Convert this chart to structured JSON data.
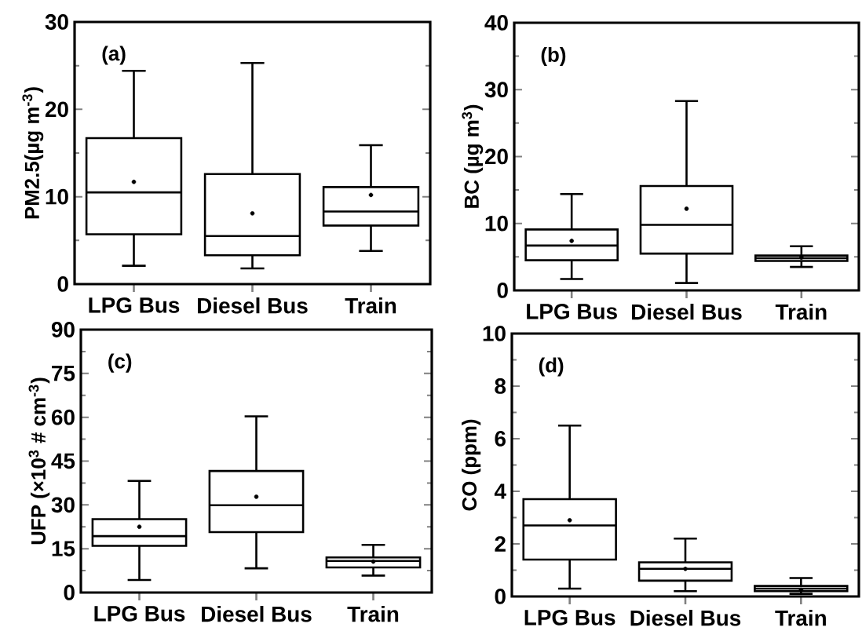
{
  "chart_data": [
    {
      "type": "box",
      "categories": [
        "LPG Bus",
        "Diesel Bus",
        "Train"
      ],
      "ylabel": "PM2.5(µg m$^{-3}$)",
      "ylim": [
        0,
        30
      ],
      "yticks": [
        0,
        10,
        20,
        30
      ],
      "annotations": [
        "(a)"
      ],
      "boxes": [
        {
          "low": 2.1,
          "q1": 5.7,
          "median": 10.5,
          "q3": 16.7,
          "high": 24.4,
          "mean": 11.7
        },
        {
          "low": 1.8,
          "q1": 3.3,
          "median": 5.5,
          "q3": 12.6,
          "high": 25.3,
          "mean": 8.1
        },
        {
          "low": 3.8,
          "q1": 6.7,
          "median": 8.3,
          "q3": 11.1,
          "high": 15.9,
          "mean": 10.2
        }
      ]
    },
    {
      "type": "box",
      "categories": [
        "LPG Bus",
        "Diesel Bus",
        "Train"
      ],
      "ylabel": "BC (µg m$^{3}$)",
      "ylim": [
        0,
        40
      ],
      "yticks": [
        0,
        10,
        20,
        30,
        40
      ],
      "annotations": [
        "(b)"
      ],
      "boxes": [
        {
          "low": 1.7,
          "q1": 4.5,
          "median": 6.7,
          "q3": 9.1,
          "high": 14.4,
          "mean": 7.4
        },
        {
          "low": 1.1,
          "q1": 5.5,
          "median": 9.8,
          "q3": 15.6,
          "high": 28.3,
          "mean": 12.2
        },
        {
          "low": 3.5,
          "q1": 4.4,
          "median": 4.8,
          "q3": 5.2,
          "high": 6.6,
          "mean": 4.9
        }
      ]
    },
    {
      "type": "box",
      "categories": [
        "LPG Bus",
        "Diesel Bus",
        "Train"
      ],
      "ylabel": "UFP (×10$^{3}$ # cm$^{-3}$)",
      "ylim": [
        0,
        90
      ],
      "yticks": [
        0,
        15,
        30,
        45,
        60,
        75,
        90
      ],
      "annotations": [
        "(c)"
      ],
      "boxes": [
        {
          "low": 4.3,
          "q1": 16,
          "median": 19.3,
          "q3": 25.1,
          "high": 38.2,
          "mean": 22.5
        },
        {
          "low": 8.3,
          "q1": 20.7,
          "median": 29.9,
          "q3": 41.6,
          "high": 60.3,
          "mean": 32.8
        },
        {
          "low": 5.8,
          "q1": 8.6,
          "median": 10.8,
          "q3": 12,
          "high": 16.3,
          "mean": 10.6
        }
      ]
    },
    {
      "type": "box",
      "categories": [
        "LPG Bus",
        "Diesel Bus",
        "Train"
      ],
      "ylabel": "CO (ppm)",
      "ylim": [
        0,
        10
      ],
      "yticks": [
        0,
        2,
        4,
        6,
        8,
        10
      ],
      "annotations": [
        "(d)"
      ],
      "boxes": [
        {
          "low": 0.3,
          "q1": 1.4,
          "median": 2.7,
          "q3": 3.7,
          "high": 6.5,
          "mean": 2.9
        },
        {
          "low": 0.2,
          "q1": 0.6,
          "median": 1.05,
          "q3": 1.3,
          "high": 2.2,
          "mean": 1.05
        },
        {
          "low": 0.1,
          "q1": 0.2,
          "median": 0.3,
          "q3": 0.4,
          "high": 0.7,
          "mean": 0.25
        }
      ]
    }
  ]
}
